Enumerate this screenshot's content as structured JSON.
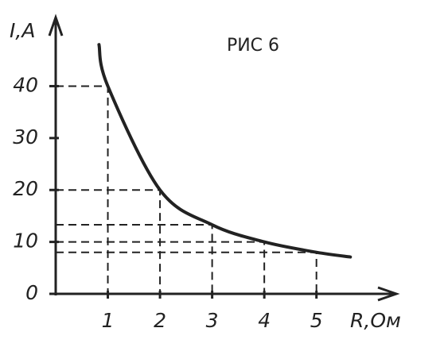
{
  "chart_data": {
    "type": "line",
    "title": "РИС 6",
    "x_label": "R,Ом",
    "y_label": "I,A",
    "x": [
      0.83,
      1,
      2,
      3,
      4,
      5,
      5.65
    ],
    "series": [
      {
        "values": [
          48,
          40,
          20,
          13.3,
          10,
          8,
          7.1
        ],
        "color": "#222222"
      }
    ],
    "xlim": [
      0,
      6.5
    ],
    "ylim": [
      0,
      52
    ],
    "xticks": [
      1,
      2,
      3,
      4,
      5
    ],
    "yticks": [
      0,
      10,
      20,
      30,
      40
    ],
    "grid": false
  }
}
